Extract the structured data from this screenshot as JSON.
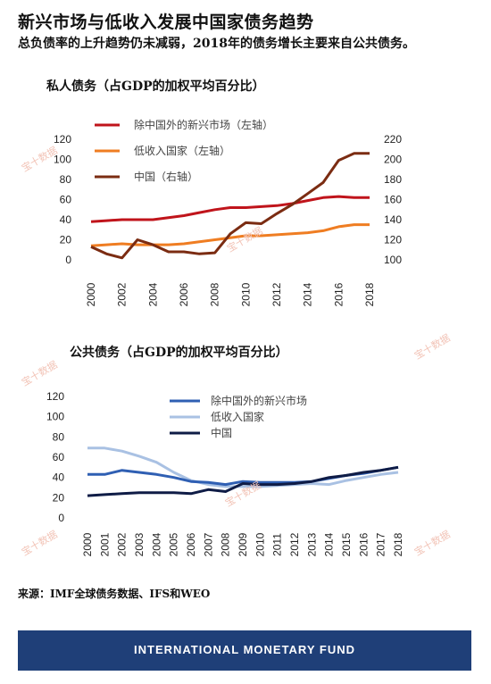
{
  "header": {
    "title": "新兴市场与低收入发展中国家债务趋势",
    "subtitle": "总负债率的上升趋势仍未减弱，2018年的债务增长主要来自公共债务。"
  },
  "source": "来源：IMF全球债务数据、IFS和WEO",
  "footer": {
    "label": "INTERNATIONAL MONETARY FUND",
    "color": "#1f3f78"
  },
  "watermark": "宝十数据",
  "chart_data": [
    {
      "type": "line",
      "title": "私人债务（占GDP的加权平均百分比）",
      "x": [
        2000,
        2001,
        2002,
        2003,
        2004,
        2005,
        2006,
        2007,
        2008,
        2009,
        2010,
        2011,
        2012,
        2013,
        2014,
        2015,
        2016,
        2017,
        2018
      ],
      "xticks": [
        "2000",
        "2002",
        "2004",
        "2006",
        "2008",
        "2010",
        "2012",
        "2014",
        "2016",
        "2018"
      ],
      "ylim_left": [
        0,
        120
      ],
      "yticks_left": [
        "0",
        "20",
        "40",
        "60",
        "80",
        "100",
        "120"
      ],
      "ylim_right": [
        100,
        220
      ],
      "yticks_right": [
        "100",
        "120",
        "140",
        "160",
        "180",
        "200",
        "220"
      ],
      "series": [
        {
          "name": "除中国外的新兴市场（左轴）",
          "axis": "left",
          "color": "#c0141b",
          "values": [
            38,
            39,
            40,
            40,
            40,
            42,
            44,
            47,
            50,
            52,
            52,
            53,
            54,
            56,
            59,
            62,
            63,
            62,
            62
          ]
        },
        {
          "name": "低收入国家（左轴）",
          "axis": "left",
          "color": "#ef7d22",
          "values": [
            14,
            15,
            16,
            15,
            15,
            15,
            16,
            18,
            20,
            22,
            24,
            24,
            25,
            26,
            27,
            29,
            33,
            35,
            35
          ]
        },
        {
          "name": "中国（右轴）",
          "axis": "right",
          "color": "#7b2c12",
          "values": [
            113,
            106,
            102,
            120,
            115,
            108,
            108,
            106,
            107,
            126,
            137,
            136,
            146,
            155,
            166,
            177,
            199,
            206,
            206
          ]
        }
      ]
    },
    {
      "type": "line",
      "title": "公共债务（占GDP的加权平均百分比）",
      "x": [
        2000,
        2001,
        2002,
        2003,
        2004,
        2005,
        2006,
        2007,
        2008,
        2009,
        2010,
        2011,
        2012,
        2013,
        2014,
        2015,
        2016,
        2017,
        2018
      ],
      "xticks": [
        "2000",
        "2001",
        "2002",
        "2003",
        "2004",
        "2005",
        "2006",
        "2007",
        "2008",
        "2009",
        "2010",
        "2011",
        "2012",
        "2013",
        "2014",
        "2015",
        "2016",
        "2017",
        "2018"
      ],
      "ylim": [
        0,
        120
      ],
      "yticks": [
        "0",
        "20",
        "40",
        "60",
        "80",
        "100",
        "120"
      ],
      "series": [
        {
          "name": "除中国外的新兴市场",
          "color": "#2f5fb3",
          "values": [
            43,
            43,
            47,
            45,
            43,
            40,
            36,
            35,
            33,
            36,
            35,
            35,
            35,
            36,
            39,
            42,
            44,
            47,
            50
          ]
        },
        {
          "name": "低收入国家",
          "color": "#a9c1e3",
          "values": [
            69,
            69,
            66,
            61,
            55,
            45,
            37,
            33,
            31,
            31,
            31,
            32,
            33,
            34,
            33,
            37,
            40,
            43,
            45
          ]
        },
        {
          "name": "中国",
          "color": "#0f1c46",
          "values": [
            22,
            23,
            24,
            25,
            25,
            25,
            24,
            28,
            26,
            34,
            33,
            33,
            34,
            36,
            40,
            42,
            45,
            47,
            50
          ]
        }
      ]
    }
  ]
}
